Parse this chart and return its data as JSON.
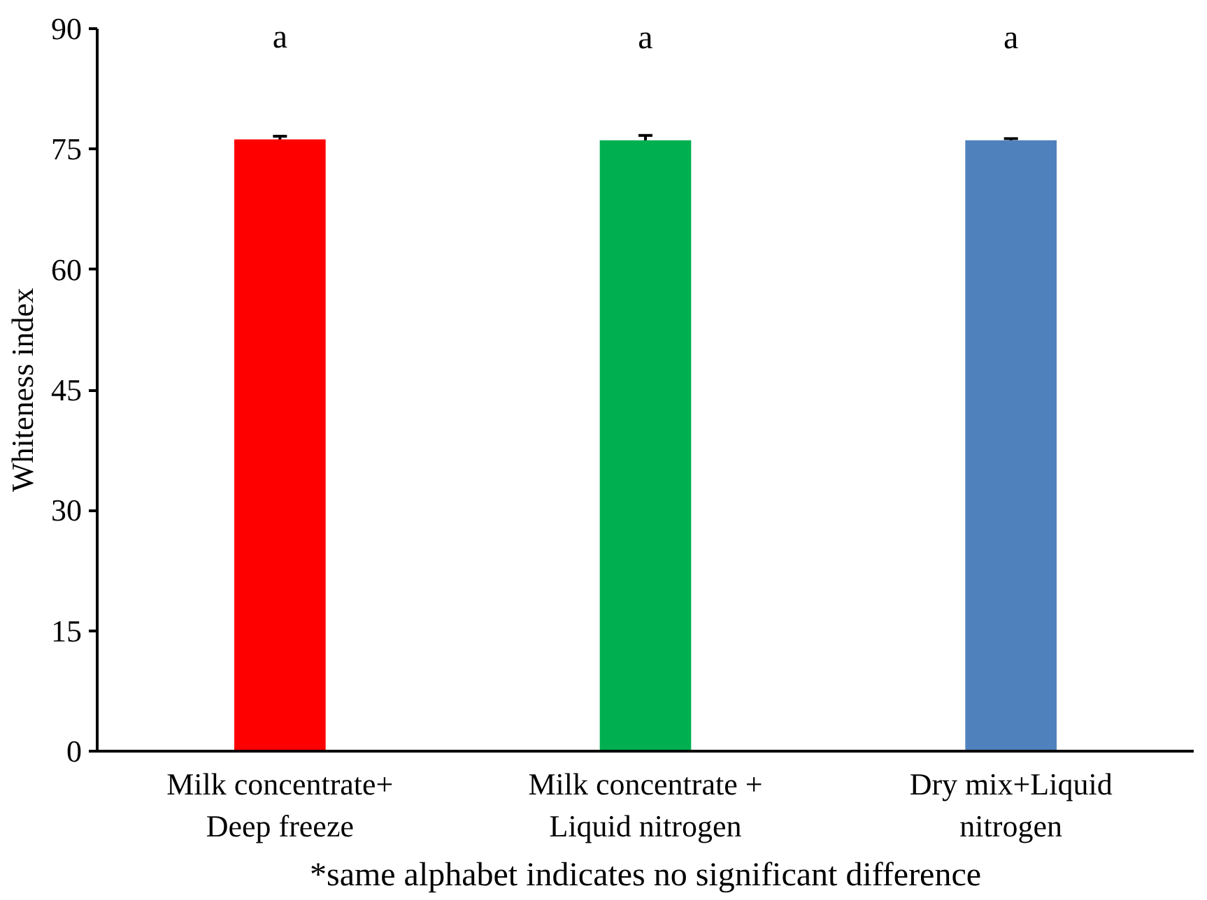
{
  "chart_data": {
    "type": "bar",
    "ylabel": "Whiteness index",
    "categories": [
      "Milk concentrate+\nDeep freeze",
      "Milk concentrate +\nLiquid nitrogen",
      "Dry mix+Liquid\nnitrogen"
    ],
    "values": [
      76.2,
      76.1,
      76.1
    ],
    "colors": [
      "#ff0000",
      "#00b050",
      "#4f81bd"
    ],
    "errors": [
      0.4,
      0.6,
      0.2
    ],
    "ylim": [
      0,
      90
    ],
    "yticks": [
      0,
      15,
      30,
      45,
      60,
      75,
      90
    ],
    "grid": false,
    "annotations": [
      "a",
      "a",
      "a",
      "*same alphabet indicates no significant difference"
    ]
  }
}
